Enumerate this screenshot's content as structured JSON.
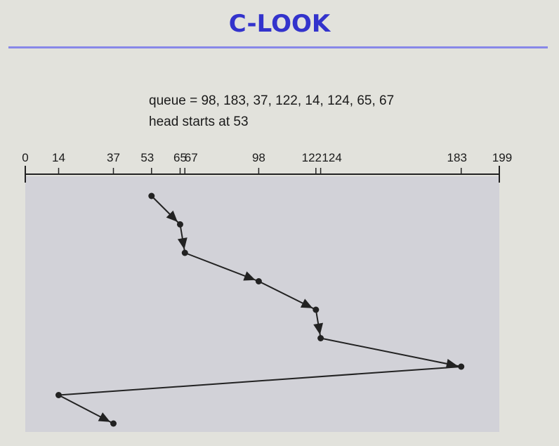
{
  "title": "C-LOOK",
  "queue_text": "queue = 98, 183, 37, 122, 14, 124, 65, 67",
  "head_text": "head starts at 53",
  "axis": {
    "min": 0,
    "max": 199,
    "ticks": [
      0,
      14,
      37,
      53,
      65,
      67,
      98,
      122,
      124,
      183,
      199
    ],
    "tick_labels": [
      "0",
      "14",
      "37",
      "53",
      "65",
      "67",
      "98",
      "122",
      "124",
      "183",
      "199"
    ]
  },
  "head_path": [
    53,
    65,
    67,
    98,
    122,
    124,
    183,
    14,
    37
  ],
  "colors": {
    "title": "#3333cc",
    "rule": "#8888e8",
    "plot_bg": "#d2d2d8",
    "line": "#222222"
  }
}
